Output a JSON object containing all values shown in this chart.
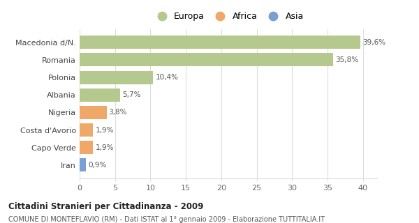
{
  "categories": [
    "Macedonia d/N.",
    "Romania",
    "Polonia",
    "Albania",
    "Nigeria",
    "Costa d'Avorio",
    "Capo Verde",
    "Iran"
  ],
  "values": [
    39.6,
    35.8,
    10.4,
    5.7,
    3.8,
    1.9,
    1.9,
    0.9
  ],
  "labels": [
    "39,6%",
    "35,8%",
    "10,4%",
    "5,7%",
    "3,8%",
    "1,9%",
    "1,9%",
    "0,9%"
  ],
  "bar_colors": [
    "#b5c98e",
    "#b5c98e",
    "#b5c98e",
    "#b5c98e",
    "#f0a868",
    "#f0a868",
    "#f0a868",
    "#7b9fd4"
  ],
  "legend_items": [
    {
      "label": "Europa",
      "color": "#b5c98e"
    },
    {
      "label": "Africa",
      "color": "#f0a868"
    },
    {
      "label": "Asia",
      "color": "#7b9fd4"
    }
  ],
  "xlim": [
    0,
    42
  ],
  "xticks": [
    0,
    5,
    10,
    15,
    20,
    25,
    30,
    35,
    40
  ],
  "title_bold": "Cittadini Stranieri per Cittadinanza - 2009",
  "subtitle": "COMUNE DI MONTEFLAVIO (RM) - Dati ISTAT al 1° gennaio 2009 - Elaborazione TUTTITALIA.IT",
  "background_color": "#ffffff",
  "grid_color": "#dddddd",
  "bar_height": 0.75
}
